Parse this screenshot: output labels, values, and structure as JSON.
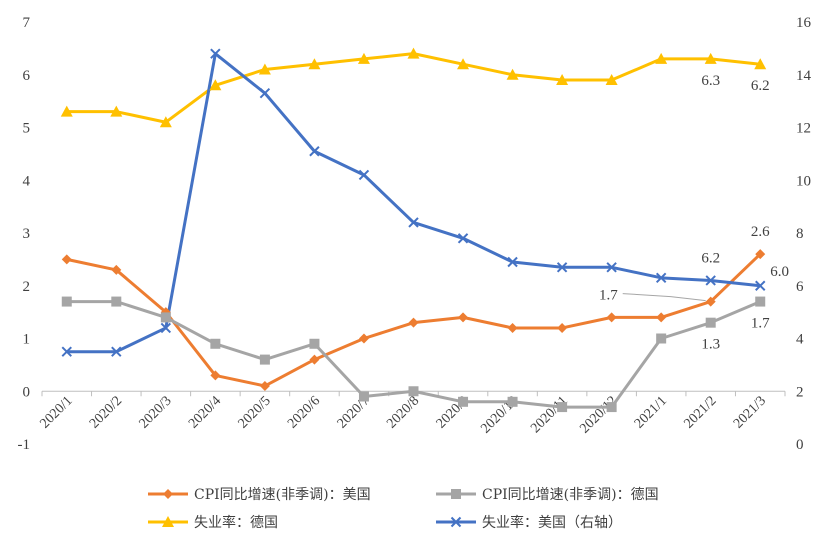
{
  "chart_data": {
    "type": "line",
    "categories": [
      "2020/1",
      "2020/2",
      "2020/3",
      "2020/4",
      "2020/5",
      "2020/6",
      "2020/7",
      "2020/8",
      "2020/9",
      "2020/10",
      "2020/11",
      "2020/12",
      "2021/1",
      "2021/2",
      "2021/3"
    ],
    "y_left": {
      "ylim": [
        -1,
        7
      ],
      "ticks": [
        "-1",
        "0",
        "1",
        "2",
        "3",
        "4",
        "5",
        "6",
        "7"
      ]
    },
    "y_right": {
      "ylim": [
        0,
        16
      ],
      "ticks": [
        "0",
        "2",
        "4",
        "6",
        "8",
        "10",
        "12",
        "14",
        "16"
      ]
    },
    "series": [
      {
        "name": "CPI同比增速(非季调)：美国",
        "axis": "left",
        "color": "#ED7D31",
        "marker": "diamond",
        "values": [
          2.5,
          2.3,
          1.5,
          0.3,
          0.1,
          0.6,
          1.0,
          1.3,
          1.4,
          1.2,
          1.2,
          1.4,
          1.4,
          1.7,
          2.6
        ]
      },
      {
        "name": "CPI同比增速(非季调)：德国",
        "axis": "left",
        "color": "#A5A5A5",
        "marker": "square",
        "values": [
          1.7,
          1.7,
          1.4,
          0.9,
          0.6,
          0.9,
          -0.1,
          0.0,
          -0.2,
          -0.2,
          -0.3,
          -0.3,
          1.0,
          1.3,
          1.7
        ]
      },
      {
        "name": "失业率：德国",
        "axis": "left",
        "color": "#FFC000",
        "marker": "triangle",
        "values": [
          5.3,
          5.3,
          5.1,
          5.8,
          6.1,
          6.2,
          6.3,
          6.4,
          6.2,
          6.0,
          5.9,
          5.9,
          6.3,
          6.3,
          6.2
        ]
      },
      {
        "name": "失业率：美国（右轴）",
        "axis": "right",
        "color": "#4472C4",
        "marker": "x",
        "values": [
          3.5,
          3.5,
          4.4,
          14.8,
          13.3,
          11.1,
          10.2,
          8.4,
          7.8,
          6.9,
          6.7,
          6.7,
          6.3,
          6.2,
          6.0
        ]
      }
    ],
    "annotations": [
      {
        "text": "6.3",
        "series": 2,
        "index": 13,
        "pos": "below"
      },
      {
        "text": "6.2",
        "series": 2,
        "index": 14,
        "pos": "below"
      },
      {
        "text": "2.6",
        "series": 0,
        "index": 14,
        "pos": "above"
      },
      {
        "text": "6.2",
        "series": 3,
        "index": 13,
        "pos": "above"
      },
      {
        "text": "6.0",
        "series": 3,
        "index": 14,
        "pos": "right"
      },
      {
        "text": "1.7",
        "series": 0,
        "index": 13,
        "pos": "leader"
      },
      {
        "text": "1.3",
        "series": 1,
        "index": 13,
        "pos": "below"
      },
      {
        "text": "1.7",
        "series": 1,
        "index": 14,
        "pos": "below"
      }
    ],
    "legend_position": "bottom",
    "grid": false
  }
}
